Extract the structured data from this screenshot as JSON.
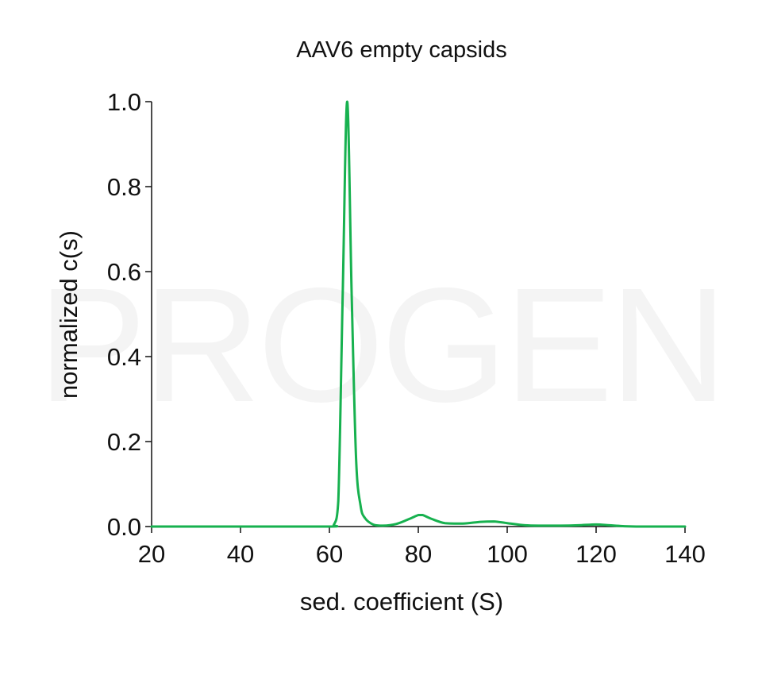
{
  "watermark": "PROGEN",
  "chart_data": {
    "type": "line",
    "title": "AAV6 empty capsids",
    "xlabel": "sed. coefficient (S)",
    "ylabel": "normalized c(s)",
    "xlim": [
      20,
      140
    ],
    "ylim": [
      0,
      1
    ],
    "xticks": [
      "20",
      "40",
      "60",
      "80",
      "100",
      "120",
      "140"
    ],
    "yticks": [
      "0.0",
      "0.2",
      "0.4",
      "0.6",
      "0.8",
      "1.0"
    ],
    "grid": false,
    "line_color": "#17b14f",
    "series": [
      {
        "x": [
          20,
          40,
          60,
          61,
          62,
          63,
          64,
          65,
          66,
          67,
          68,
          70,
          72,
          75,
          78,
          80,
          81,
          83,
          86,
          90,
          94,
          97,
          100,
          104,
          108,
          112,
          116,
          120,
          123,
          126,
          130,
          140
        ],
        "y": [
          0,
          0,
          0,
          0.004,
          0.06,
          0.55,
          1.0,
          0.55,
          0.16,
          0.05,
          0.02,
          0.004,
          0.002,
          0.006,
          0.018,
          0.027,
          0.027,
          0.018,
          0.008,
          0.007,
          0.011,
          0.012,
          0.008,
          0.003,
          0.002,
          0.002,
          0.003,
          0.005,
          0.003,
          0.001,
          0,
          0
        ]
      }
    ]
  }
}
